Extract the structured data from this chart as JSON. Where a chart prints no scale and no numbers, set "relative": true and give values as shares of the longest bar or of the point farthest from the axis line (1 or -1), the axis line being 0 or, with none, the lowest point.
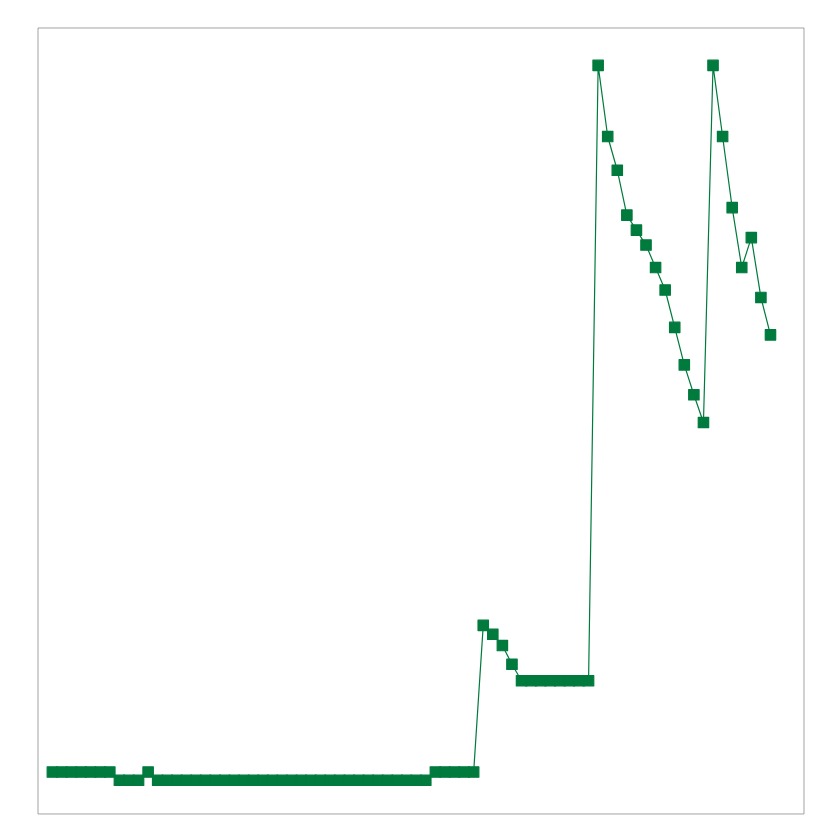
{
  "chart_data": {
    "type": "line",
    "relative": true,
    "marker": "square",
    "line_style": "solid",
    "categories": [
      null,
      null,
      null,
      null,
      null,
      null,
      null,
      null,
      null,
      null,
      null,
      null,
      null,
      null,
      null,
      null,
      null,
      null,
      null,
      null,
      null,
      null,
      null,
      null,
      null,
      null,
      null,
      null,
      null,
      null,
      null,
      null,
      null,
      null,
      null,
      null,
      null,
      null,
      null,
      null,
      null,
      null,
      null,
      null,
      null,
      null,
      null,
      null,
      null,
      null,
      null,
      null,
      null,
      null,
      null,
      null,
      null,
      null,
      null,
      null,
      null,
      null,
      null,
      null,
      null,
      null,
      null,
      null,
      null,
      null,
      null,
      null,
      null,
      null,
      null,
      null
    ],
    "series": [
      {
        "color": "#007a3d",
        "values": [
          0.056,
          0.056,
          0.056,
          0.056,
          0.056,
          0.056,
          0.056,
          0.045,
          0.045,
          0.045,
          0.056,
          0.045,
          0.045,
          0.045,
          0.045,
          0.045,
          0.045,
          0.045,
          0.045,
          0.045,
          0.045,
          0.045,
          0.045,
          0.045,
          0.045,
          0.045,
          0.045,
          0.045,
          0.045,
          0.045,
          0.045,
          0.045,
          0.045,
          0.045,
          0.045,
          0.045,
          0.045,
          0.045,
          0.045,
          0.045,
          0.056,
          0.056,
          0.056,
          0.056,
          0.056,
          0.252,
          0.24,
          0.225,
          0.2,
          0.178,
          0.178,
          0.178,
          0.178,
          0.178,
          0.178,
          0.178,
          0.178,
          1.0,
          0.905,
          0.86,
          0.8,
          0.78,
          0.76,
          0.73,
          0.7,
          0.65,
          0.6,
          0.56,
          0.523,
          1.0,
          0.905,
          0.81,
          0.73,
          0.77,
          0.69,
          0.64
        ]
      }
    ]
  }
}
